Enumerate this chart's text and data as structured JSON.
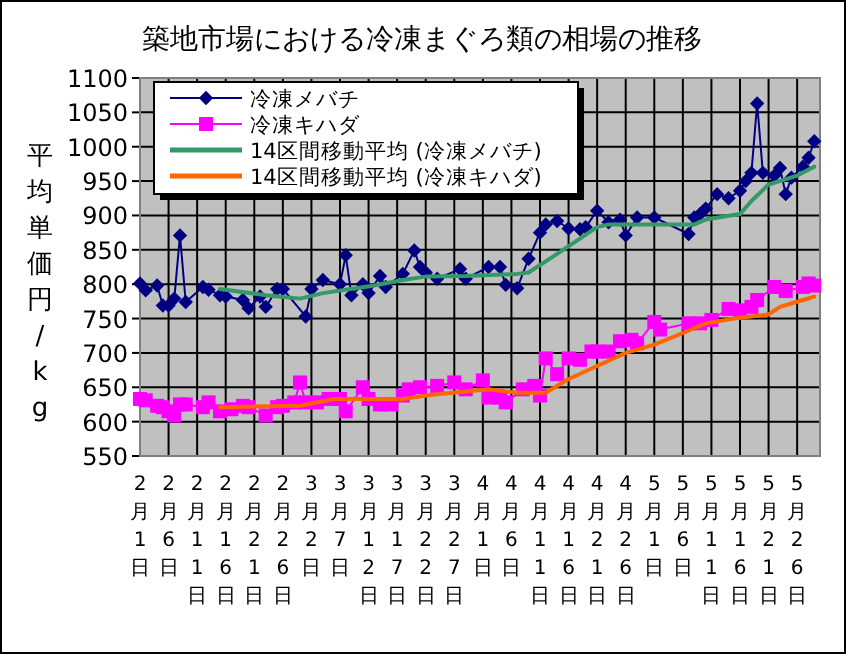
{
  "chart_data": {
    "type": "line",
    "title": "築地市場における冷凍まぐろ類の相場の推移",
    "ylabel": "平均単価円/kg",
    "xlim": [
      "--02-01",
      "--05-30"
    ],
    "xticks": [
      {
        "value": "--02-01",
        "label": "2月1日"
      },
      {
        "value": "--02-06",
        "label": "2月6日"
      },
      {
        "value": "--02-11",
        "label": "2月11日"
      },
      {
        "value": "--02-16",
        "label": "2月16日"
      },
      {
        "value": "--02-21",
        "label": "2月21日"
      },
      {
        "value": "--02-26",
        "label": "2月26日"
      },
      {
        "value": "--03-02",
        "label": "3月2日"
      },
      {
        "value": "--03-07",
        "label": "3月7日"
      },
      {
        "value": "--03-12",
        "label": "3月12日"
      },
      {
        "value": "--03-17",
        "label": "3月17日"
      },
      {
        "value": "--03-22",
        "label": "3月22日"
      },
      {
        "value": "--03-27",
        "label": "3月27日"
      },
      {
        "value": "--04-01",
        "label": "4月1日"
      },
      {
        "value": "--04-06",
        "label": "4月6日"
      },
      {
        "value": "--04-11",
        "label": "4月11日"
      },
      {
        "value": "--04-16",
        "label": "4月16日"
      },
      {
        "value": "--04-21",
        "label": "4月21日"
      },
      {
        "value": "--04-26",
        "label": "4月26日"
      },
      {
        "value": "--05-01",
        "label": "5月1日"
      },
      {
        "value": "--05-06",
        "label": "5月6日"
      },
      {
        "value": "--05-11",
        "label": "5月11日"
      },
      {
        "value": "--05-16",
        "label": "5月16日"
      },
      {
        "value": "--05-21",
        "label": "5月21日"
      },
      {
        "value": "--05-26",
        "label": "5月26日"
      }
    ],
    "ylim": [
      550,
      1100
    ],
    "yticks": [
      550,
      600,
      650,
      700,
      750,
      800,
      850,
      900,
      950,
      1000,
      1050,
      1100
    ],
    "grid": true,
    "legend": "top left",
    "series": [
      {
        "name": "冷凍メバチ",
        "color": "#000080",
        "marker": "diamond",
        "x": [
          "--02-01",
          "--02-02",
          "--02-04",
          "--02-05",
          "--02-06",
          "--02-07",
          "--02-08",
          "--02-09",
          "--02-12",
          "--02-13",
          "--02-15",
          "--02-16",
          "--02-19",
          "--02-20",
          "--02-22",
          "--02-23",
          "--02-25",
          "--02-26",
          "--03-01",
          "--03-02",
          "--03-04",
          "--03-07",
          "--03-08",
          "--03-09",
          "--03-11",
          "--03-12",
          "--03-14",
          "--03-15",
          "--03-18",
          "--03-20",
          "--03-21",
          "--03-22",
          "--03-24",
          "--03-28",
          "--03-29",
          "--04-02",
          "--04-04",
          "--04-05",
          "--04-07",
          "--04-09",
          "--04-11",
          "--04-12",
          "--04-14",
          "--04-16",
          "--04-18",
          "--04-19",
          "--04-21",
          "--04-23",
          "--04-25",
          "--04-26",
          "--04-28",
          "--05-01",
          "--05-07",
          "--05-08",
          "--05-09",
          "--05-10",
          "--05-12",
          "--05-14",
          "--05-16",
          "--05-17",
          "--05-18",
          "--05-19",
          "--05-20",
          "--05-22",
          "--05-23",
          "--05-24",
          "--05-25",
          "--05-27",
          "--05-28",
          "--05-29"
        ],
        "values": [
          801,
          791,
          798,
          769,
          769,
          779,
          871,
          774,
          796,
          792,
          784,
          782,
          777,
          765,
          782,
          767,
          793,
          793,
          753,
          793,
          806,
          800,
          842,
          784,
          800,
          787,
          812,
          796,
          815,
          849,
          825,
          817,
          808,
          822,
          808,
          825,
          825,
          799,
          794,
          837,
          875,
          887,
          892,
          881,
          880,
          883,
          907,
          890,
          894,
          871,
          897,
          897,
          873,
          897,
          902,
          910,
          931,
          925,
          936,
          950,
          962,
          1063,
          962,
          958,
          969,
          931,
          955,
          971,
          984,
          1008
        ]
      },
      {
        "name": "冷凍キハダ",
        "color": "#ff00ff",
        "marker": "square",
        "x": [
          "--02-01",
          "--02-02",
          "--02-04",
          "--02-05",
          "--02-06",
          "--02-07",
          "--02-08",
          "--02-09",
          "--02-12",
          "--02-13",
          "--02-15",
          "--02-17",
          "--02-19",
          "--02-20",
          "--02-23",
          "--02-25",
          "--02-26",
          "--02-28",
          "--02-29",
          "--03-01",
          "--03-03",
          "--03-05",
          "--03-07",
          "--03-08",
          "--03-11",
          "--03-12",
          "--03-14",
          "--03-16",
          "--03-18",
          "--03-19",
          "--03-21",
          "--03-24",
          "--03-27",
          "--03-29",
          "--04-01",
          "--04-02",
          "--04-04",
          "--04-05",
          "--04-08",
          "--04-10",
          "--04-11",
          "--04-12",
          "--04-14",
          "--04-16",
          "--04-18",
          "--04-20",
          "--04-21",
          "--04-23",
          "--04-25",
          "--04-27",
          "--04-28",
          "--05-01",
          "--05-02",
          "--05-07",
          "--05-09",
          "--05-11",
          "--05-14",
          "--05-16",
          "--05-18",
          "--05-19",
          "--05-22",
          "--05-24",
          "--05-27",
          "--05-28",
          "--05-29"
        ],
        "values": [
          633,
          631,
          623,
          621,
          615,
          609,
          625,
          625,
          621,
          628,
          615,
          618,
          623,
          621,
          609,
          621,
          623,
          628,
          657,
          628,
          628,
          633,
          633,
          615,
          650,
          633,
          625,
          625,
          638,
          647,
          650,
          652,
          657,
          647,
          660,
          635,
          635,
          628,
          647,
          652,
          638,
          692,
          669,
          692,
          690,
          702,
          702,
          702,
          717,
          719,
          714,
          745,
          734,
          743,
          743,
          748,
          764,
          762,
          767,
          777,
          796,
          790,
          796,
          801,
          798
        ]
      },
      {
        "name": "14区間移動平均 (冷凍メバチ)",
        "color": "#339966",
        "marker": "none",
        "x": [
          "--02-15",
          "--02-23",
          "--02-29",
          "--03-04",
          "--03-13",
          "--03-18",
          "--03-22",
          "--03-29",
          "--04-07",
          "--04-09",
          "--04-14",
          "--04-21",
          "--04-23",
          "--05-05",
          "--05-08",
          "--05-10",
          "--05-16",
          "--05-18",
          "--05-21",
          "--05-26",
          "--05-29"
        ],
        "values": [
          793,
          784,
          779,
          787,
          798,
          806,
          811,
          812,
          815,
          817,
          844,
          883,
          887,
          887,
          887,
          894,
          902,
          921,
          945,
          958,
          971
        ]
      },
      {
        "name": "14区間移動平均 (冷凍キハダ)",
        "color": "#ff6600",
        "marker": "none",
        "x": [
          "--02-15",
          "--02-29",
          "--03-06",
          "--03-13",
          "--03-18",
          "--03-23",
          "--03-29",
          "--04-02",
          "--04-07",
          "--04-12",
          "--04-16",
          "--04-21",
          "--04-26",
          "--05-01",
          "--05-06",
          "--05-10",
          "--05-15",
          "--05-21",
          "--05-23",
          "--05-27",
          "--05-29"
        ],
        "values": [
          621,
          623,
          633,
          633,
          633,
          639,
          644,
          647,
          642,
          642,
          662,
          681,
          700,
          712,
          729,
          743,
          750,
          756,
          767,
          777,
          782
        ]
      }
    ]
  }
}
